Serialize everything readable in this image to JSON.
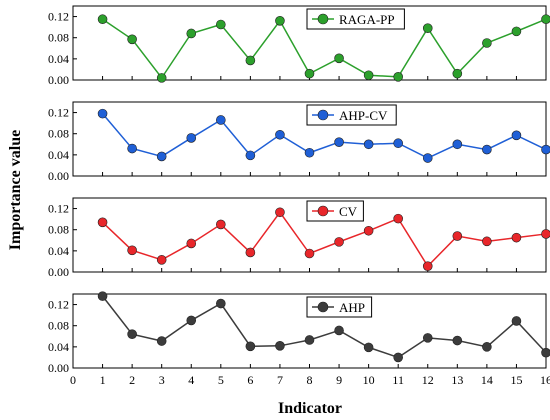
{
  "chart_data": {
    "type": "line",
    "xlabel": "Indicator",
    "ylabel": "Importance value",
    "xlim": [
      0,
      16
    ],
    "x_ticks": [
      "0",
      "1",
      "2",
      "3",
      "4",
      "5",
      "6",
      "7",
      "8",
      "9",
      "10",
      "11",
      "12",
      "13",
      "14",
      "15",
      "16"
    ],
    "ylim": [
      0,
      0.14
    ],
    "y_ticks": [
      "0.00",
      "0.04",
      "0.08",
      "0.12"
    ],
    "legend_position": "top-right",
    "grid": false,
    "x": [
      1,
      2,
      3,
      4,
      5,
      6,
      7,
      8,
      9,
      10,
      11,
      12,
      13,
      14,
      15,
      16
    ],
    "series": [
      {
        "name": "RAGA-PP",
        "color": "#2ca02c",
        "values": [
          0.115,
          0.077,
          0.004,
          0.088,
          0.105,
          0.037,
          0.112,
          0.012,
          0.041,
          0.009,
          0.006,
          0.098,
          0.012,
          0.07,
          0.092,
          0.115
        ]
      },
      {
        "name": "AHP-CV",
        "color": "#1f5fd6",
        "values": [
          0.118,
          0.052,
          0.037,
          0.072,
          0.106,
          0.039,
          0.078,
          0.044,
          0.064,
          0.06,
          0.062,
          0.034,
          0.06,
          0.05,
          0.077,
          0.05
        ]
      },
      {
        "name": "CV",
        "color": "#e8262a",
        "values": [
          0.094,
          0.041,
          0.023,
          0.054,
          0.09,
          0.037,
          0.113,
          0.035,
          0.057,
          0.078,
          0.101,
          0.011,
          0.068,
          0.058,
          0.065,
          0.072
        ]
      },
      {
        "name": "AHP",
        "color": "#3c3c3c",
        "values": [
          0.136,
          0.064,
          0.051,
          0.09,
          0.122,
          0.041,
          0.042,
          0.053,
          0.071,
          0.039,
          0.02,
          0.057,
          0.052,
          0.04,
          0.089,
          0.029
        ]
      }
    ]
  }
}
